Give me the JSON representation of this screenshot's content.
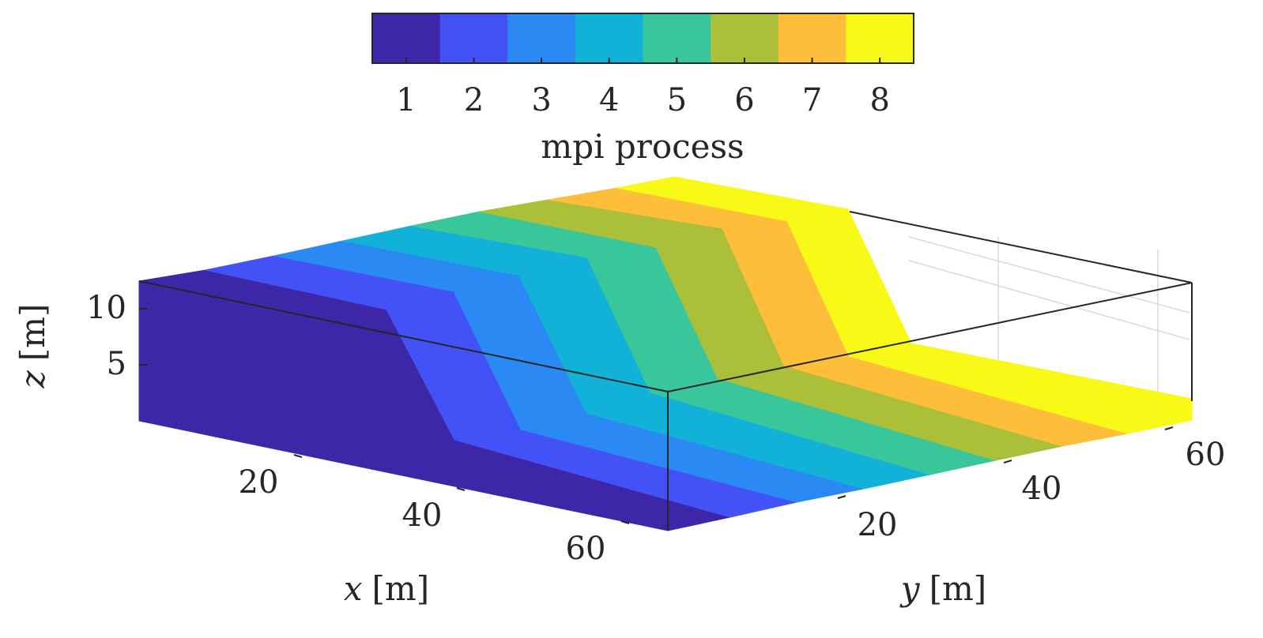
{
  "chart_data": {
    "type": "3d-surface",
    "colorbar": {
      "label": "mpi process",
      "categories": [
        "1",
        "2",
        "3",
        "4",
        "5",
        "6",
        "7",
        "8"
      ],
      "colors": [
        "#3E26A8",
        "#4352F6",
        "#2A89F2",
        "#12B2D8",
        "#38C69A",
        "#ABBF38",
        "#FEBE3A",
        "#F8F916"
      ]
    },
    "axes": {
      "x": {
        "var": "x",
        "unit": "[m]",
        "ticks": [
          "20",
          "40",
          "60"
        ]
      },
      "y": {
        "var": "y",
        "unit": "[m]",
        "ticks": [
          "20",
          "40",
          "60"
        ]
      },
      "z": {
        "var": "z",
        "unit": "[m]",
        "ticks": [
          "5",
          "10"
        ]
      }
    },
    "grid": true
  }
}
